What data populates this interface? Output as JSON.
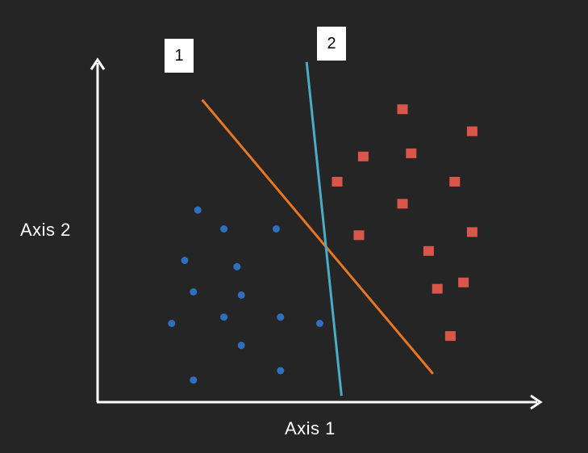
{
  "axes": {
    "x_label": "Axis 1",
    "y_label": "Axis 2"
  },
  "colors": {
    "background": "#252525",
    "axis": "#ffffff",
    "class_a": "#2f6fbf",
    "class_b": "#d9574a",
    "line_1": "#e87722",
    "line_2": "#4bacc6"
  },
  "lines": [
    {
      "label": "1",
      "color": "#e87722"
    },
    {
      "label": "2",
      "color": "#4bacc6"
    }
  ],
  "chart_data": {
    "type": "scatter",
    "xlim": [
      0,
      100
    ],
    "ylim": [
      0,
      100
    ],
    "series": [
      {
        "marker": "circle",
        "color": "#2f6fbf",
        "points": [
          [
            23,
            61
          ],
          [
            29,
            55
          ],
          [
            41,
            55
          ],
          [
            20,
            45
          ],
          [
            32,
            43
          ],
          [
            22,
            35
          ],
          [
            33,
            34
          ],
          [
            17,
            25
          ],
          [
            29,
            27
          ],
          [
            42,
            27
          ],
          [
            51,
            25
          ],
          [
            33,
            18
          ],
          [
            22,
            7
          ],
          [
            42,
            10
          ]
        ]
      },
      {
        "marker": "square",
        "color": "#d9574a",
        "points": [
          [
            70,
            93
          ],
          [
            86,
            86
          ],
          [
            61,
            78
          ],
          [
            72,
            79
          ],
          [
            55,
            70
          ],
          [
            82,
            70
          ],
          [
            70,
            63
          ],
          [
            60,
            53
          ],
          [
            86,
            54
          ],
          [
            76,
            48
          ],
          [
            78,
            36
          ],
          [
            84,
            38
          ],
          [
            81,
            21
          ]
        ]
      }
    ],
    "lines": [
      {
        "label": "1",
        "from": [
          24,
          96
        ],
        "to": [
          77,
          9
        ]
      },
      {
        "label": "2",
        "from": [
          48,
          108
        ],
        "to": [
          56,
          2
        ]
      }
    ]
  }
}
